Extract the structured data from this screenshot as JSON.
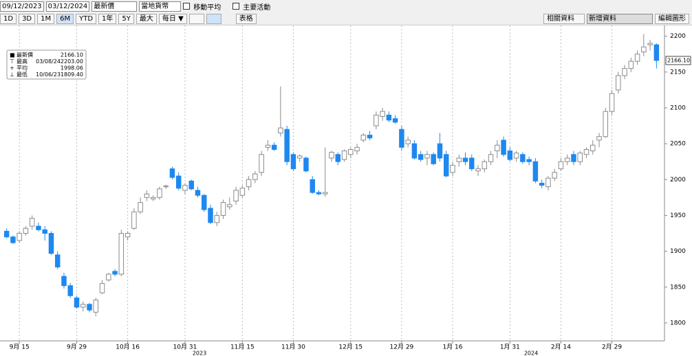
{
  "toolbar": {
    "start_date": "09/12/2023",
    "end_date": "03/12/2024",
    "field": "最新價",
    "currency": "當地貨幣",
    "moving_average": "移動平均",
    "key_events": "主要活動",
    "periods": [
      "1D",
      "3D",
      "1M",
      "6M",
      "YTD",
      "1年",
      "5Y",
      "最大"
    ],
    "frequency": "每日 ▼",
    "table": "表格",
    "related": "相關資料",
    "add_data": "新增資料",
    "edit": "編輯圖形"
  },
  "chart_data": {
    "type": "candlestick",
    "up_color": "#ffffff",
    "up_stroke": "#8a8a8a",
    "down_color": "#1e88f0",
    "ylim": [
      1775,
      2215
    ],
    "yticks": [
      1800,
      1850,
      1900,
      1950,
      2000,
      2050,
      2100,
      2150,
      2200
    ],
    "grid": true,
    "stats": [
      {
        "name": "最新價",
        "value": "2166.10"
      },
      {
        "name": "最高",
        "date": "03/08/24",
        "value": "2203.00"
      },
      {
        "name": "平均",
        "value": "1998.06"
      },
      {
        "name": "最低",
        "date": "10/06/23",
        "value": "1809.40"
      }
    ],
    "years": [
      "2023",
      "2024"
    ],
    "categories": [
      null,
      null,
      "9月 15",
      null,
      null,
      null,
      null,
      null,
      null,
      null,
      null,
      "9月 29",
      null,
      null,
      null,
      null,
      null,
      null,
      null,
      "10月 16",
      null,
      null,
      null,
      null,
      null,
      null,
      null,
      null,
      "10月 31",
      null,
      null,
      null,
      null,
      null,
      null,
      null,
      null,
      "11月 15",
      null,
      null,
      null,
      null,
      null,
      null,
      null,
      "11月 30",
      null,
      null,
      null,
      null,
      null,
      null,
      null,
      null,
      "12月 15",
      null,
      null,
      null,
      null,
      null,
      null,
      null,
      "12月 29",
      null,
      null,
      null,
      null,
      null,
      null,
      null,
      "1月 16",
      null,
      null,
      null,
      null,
      null,
      null,
      null,
      null,
      "1月 31",
      null,
      null,
      null,
      null,
      null,
      null,
      null,
      "2月 14",
      null,
      null,
      null,
      null,
      null,
      null,
      null,
      "2月 29",
      null,
      null,
      null,
      null,
      null,
      null,
      null
    ],
    "candles": [
      {
        "open": 1928,
        "high": 1932,
        "low": 1918,
        "close": 1920
      },
      {
        "open": 1920,
        "high": 1922,
        "low": 1910,
        "close": 1912
      },
      {
        "open": 1915,
        "high": 1928,
        "low": 1912,
        "close": 1925
      },
      {
        "open": 1925,
        "high": 1935,
        "low": 1922,
        "close": 1932
      },
      {
        "open": 1935,
        "high": 1950,
        "low": 1930,
        "close": 1946
      },
      {
        "open": 1935,
        "high": 1940,
        "low": 1928,
        "close": 1930
      },
      {
        "open": 1930,
        "high": 1935,
        "low": 1915,
        "close": 1925
      },
      {
        "open": 1925,
        "high": 1928,
        "low": 1895,
        "close": 1897
      },
      {
        "open": 1895,
        "high": 1900,
        "low": 1875,
        "close": 1878
      },
      {
        "open": 1865,
        "high": 1870,
        "low": 1848,
        "close": 1852
      },
      {
        "open": 1852,
        "high": 1856,
        "low": 1835,
        "close": 1838
      },
      {
        "open": 1835,
        "high": 1838,
        "low": 1820,
        "close": 1822
      },
      {
        "open": 1822,
        "high": 1830,
        "low": 1816,
        "close": 1826
      },
      {
        "open": 1826,
        "high": 1828,
        "low": 1815,
        "close": 1818
      },
      {
        "open": 1815,
        "high": 1835,
        "low": 1809.4,
        "close": 1832
      },
      {
        "open": 1842,
        "high": 1860,
        "low": 1840,
        "close": 1855
      },
      {
        "open": 1860,
        "high": 1870,
        "low": 1858,
        "close": 1868
      },
      {
        "open": 1872,
        "high": 1875,
        "low": 1865,
        "close": 1868
      },
      {
        "open": 1868,
        "high": 1930,
        "low": 1865,
        "close": 1925
      },
      {
        "open": 1920,
        "high": 1928,
        "low": 1915,
        "close": 1925
      },
      {
        "open": 1932,
        "high": 1960,
        "low": 1930,
        "close": 1955
      },
      {
        "open": 1955,
        "high": 1975,
        "low": 1952,
        "close": 1968
      },
      {
        "open": 1975,
        "high": 1985,
        "low": 1970,
        "close": 1980
      },
      {
        "open": 1973,
        "high": 1978,
        "low": 1970,
        "close": 1975
      },
      {
        "open": 1975,
        "high": 1990,
        "low": 1972,
        "close": 1987
      },
      {
        "open": 1990,
        "high": 1993,
        "low": 1987,
        "close": 1991
      },
      {
        "open": 2015,
        "high": 2018,
        "low": 2000,
        "close": 2003
      },
      {
        "open": 2005,
        "high": 2010,
        "low": 1985,
        "close": 1988
      },
      {
        "open": 1985,
        "high": 1995,
        "low": 1980,
        "close": 1992
      },
      {
        "open": 1998,
        "high": 2000,
        "low": 1985,
        "close": 1987
      },
      {
        "open": 1985,
        "high": 1990,
        "low": 1975,
        "close": 1978
      },
      {
        "open": 1978,
        "high": 1980,
        "low": 1955,
        "close": 1958
      },
      {
        "open": 1960,
        "high": 1965,
        "low": 1938,
        "close": 1940
      },
      {
        "open": 1940,
        "high": 1955,
        "low": 1935,
        "close": 1950
      },
      {
        "open": 1950,
        "high": 1972,
        "low": 1945,
        "close": 1968
      },
      {
        "open": 1962,
        "high": 1975,
        "low": 1958,
        "close": 1965
      },
      {
        "open": 1970,
        "high": 1990,
        "low": 1965,
        "close": 1985
      },
      {
        "open": 1978,
        "high": 1992,
        "low": 1975,
        "close": 1988
      },
      {
        "open": 1990,
        "high": 2005,
        "low": 1985,
        "close": 2000
      },
      {
        "open": 2000,
        "high": 2012,
        "low": 1995,
        "close": 2008
      },
      {
        "open": 2010,
        "high": 2040,
        "low": 2005,
        "close": 2035
      },
      {
        "open": 2045,
        "high": 2055,
        "low": 2040,
        "close": 2048
      },
      {
        "open": 2048,
        "high": 2052,
        "low": 2040,
        "close": 2042
      },
      {
        "open": 2065,
        "high": 2130,
        "low": 2060,
        "close": 2072
      },
      {
        "open": 2070,
        "high": 2075,
        "low": 2020,
        "close": 2025
      },
      {
        "open": 2035,
        "high": 2038,
        "low": 2012,
        "close": 2015
      },
      {
        "open": 2030,
        "high": 2035,
        "low": 2025,
        "close": 2033
      },
      {
        "open": 2030,
        "high": 2032,
        "low": 2010,
        "close": 2012
      },
      {
        "open": 2000,
        "high": 2005,
        "low": 1980,
        "close": 1982
      },
      {
        "open": 1982,
        "high": 1985,
        "low": 1978,
        "close": 1980
      },
      {
        "open": 1980,
        "high": 2045,
        "low": 1976,
        "close": 1982
      },
      {
        "open": 2030,
        "high": 2040,
        "low": 2025,
        "close": 2038
      },
      {
        "open": 2035,
        "high": 2038,
        "low": 2020,
        "close": 2025
      },
      {
        "open": 2028,
        "high": 2042,
        "low": 2025,
        "close": 2040
      },
      {
        "open": 2035,
        "high": 2045,
        "low": 2030,
        "close": 2042
      },
      {
        "open": 2040,
        "high": 2050,
        "low": 2035,
        "close": 2045
      },
      {
        "open": 2055,
        "high": 2065,
        "low": 2052,
        "close": 2062
      },
      {
        "open": 2062,
        "high": 2068,
        "low": 2055,
        "close": 2058
      },
      {
        "open": 2075,
        "high": 2095,
        "low": 2070,
        "close": 2090
      },
      {
        "open": 2088,
        "high": 2100,
        "low": 2082,
        "close": 2095
      },
      {
        "open": 2090,
        "high": 2095,
        "low": 2080,
        "close": 2083
      },
      {
        "open": 2085,
        "high": 2090,
        "low": 2078,
        "close": 2080
      },
      {
        "open": 2070,
        "high": 2075,
        "low": 2040,
        "close": 2045
      },
      {
        "open": 2050,
        "high": 2060,
        "low": 2045,
        "close": 2055
      },
      {
        "open": 2050,
        "high": 2055,
        "low": 2028,
        "close": 2030
      },
      {
        "open": 2035,
        "high": 2040,
        "low": 2025,
        "close": 2028
      },
      {
        "open": 2030,
        "high": 2040,
        "low": 2020,
        "close": 2035
      },
      {
        "open": 2035,
        "high": 2038,
        "low": 2020,
        "close": 2022
      },
      {
        "open": 2050,
        "high": 2065,
        "low": 2025,
        "close": 2030
      },
      {
        "open": 2035,
        "high": 2040,
        "low": 2003,
        "close": 2005
      },
      {
        "open": 2010,
        "high": 2025,
        "low": 2005,
        "close": 2020
      },
      {
        "open": 2025,
        "high": 2035,
        "low": 2018,
        "close": 2030
      },
      {
        "open": 2030,
        "high": 2038,
        "low": 2020,
        "close": 2025
      },
      {
        "open": 2030,
        "high": 2035,
        "low": 2012,
        "close": 2015
      },
      {
        "open": 2012,
        "high": 2020,
        "low": 2005,
        "close": 2015
      },
      {
        "open": 2015,
        "high": 2028,
        "low": 2010,
        "close": 2025
      },
      {
        "open": 2025,
        "high": 2040,
        "low": 2020,
        "close": 2035
      },
      {
        "open": 2040,
        "high": 2055,
        "low": 2030,
        "close": 2048
      },
      {
        "open": 2055,
        "high": 2060,
        "low": 2032,
        "close": 2035
      },
      {
        "open": 2040,
        "high": 2045,
        "low": 2025,
        "close": 2028
      },
      {
        "open": 2030,
        "high": 2040,
        "low": 2025,
        "close": 2037
      },
      {
        "open": 2035,
        "high": 2038,
        "low": 2022,
        "close": 2025
      },
      {
        "open": 2028,
        "high": 2032,
        "low": 2020,
        "close": 2025
      },
      {
        "open": 2025,
        "high": 2030,
        "low": 1995,
        "close": 1998
      },
      {
        "open": 1995,
        "high": 2000,
        "low": 1988,
        "close": 1992
      },
      {
        "open": 1990,
        "high": 2005,
        "low": 1985,
        "close": 2002
      },
      {
        "open": 2002,
        "high": 2015,
        "low": 1998,
        "close": 2010
      },
      {
        "open": 2015,
        "high": 2030,
        "low": 2012,
        "close": 2025
      },
      {
        "open": 2025,
        "high": 2035,
        "low": 2020,
        "close": 2030
      },
      {
        "open": 2035,
        "high": 2040,
        "low": 2020,
        "close": 2025
      },
      {
        "open": 2025,
        "high": 2040,
        "low": 2020,
        "close": 2037
      },
      {
        "open": 2035,
        "high": 2045,
        "low": 2030,
        "close": 2042
      },
      {
        "open": 2040,
        "high": 2055,
        "low": 2035,
        "close": 2048
      },
      {
        "open": 2055,
        "high": 2065,
        "low": 2045,
        "close": 2060
      },
      {
        "open": 2060,
        "high": 2100,
        "low": 2058,
        "close": 2095
      },
      {
        "open": 2095,
        "high": 2125,
        "low": 2090,
        "close": 2120
      },
      {
        "open": 2125,
        "high": 2150,
        "low": 2120,
        "close": 2145
      },
      {
        "open": 2145,
        "high": 2160,
        "low": 2140,
        "close": 2155
      },
      {
        "open": 2155,
        "high": 2170,
        "low": 2150,
        "close": 2165
      },
      {
        "open": 2165,
        "high": 2180,
        "low": 2160,
        "close": 2175
      },
      {
        "open": 2178,
        "high": 2203,
        "low": 2172,
        "close": 2185
      },
      {
        "open": 2188,
        "high": 2195,
        "low": 2180,
        "close": 2190
      },
      {
        "open": 2188,
        "high": 2190,
        "low": 2155,
        "close": 2166.1
      }
    ]
  }
}
